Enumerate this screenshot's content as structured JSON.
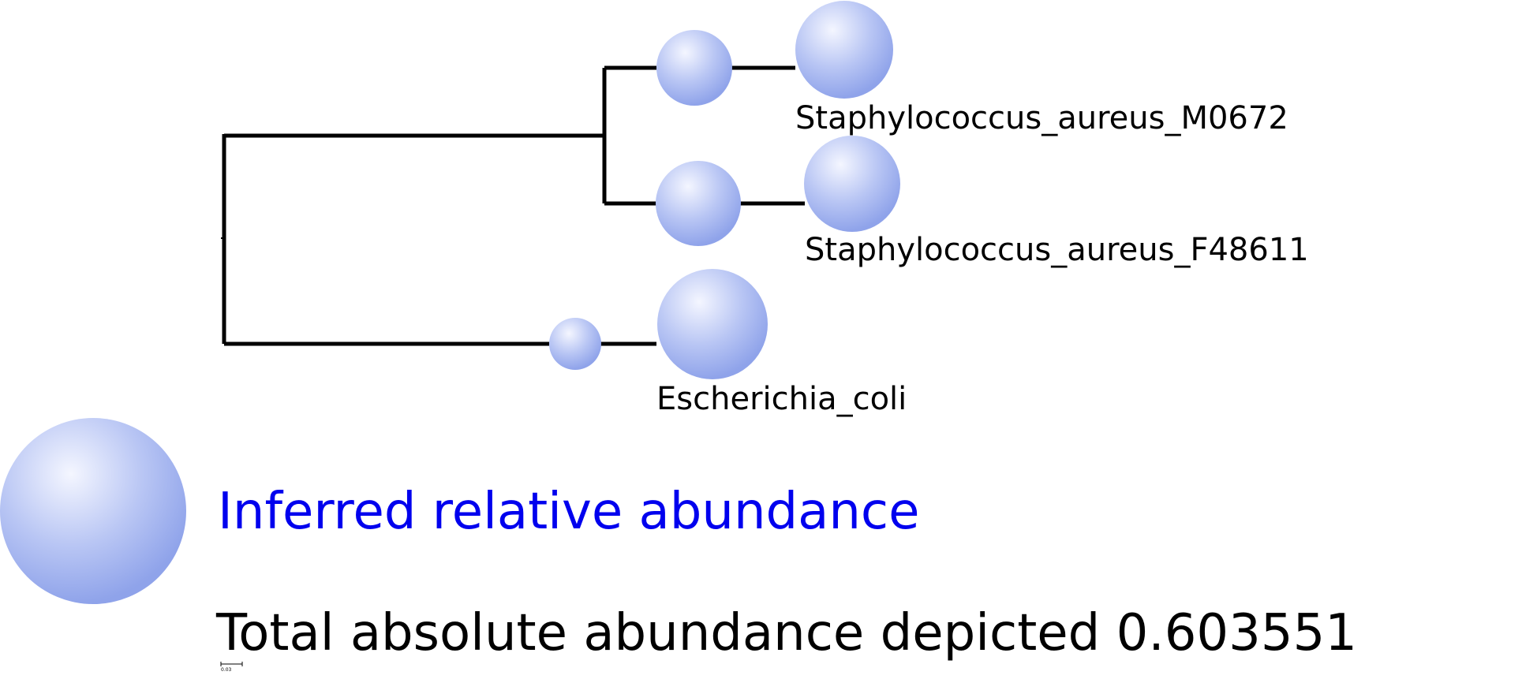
{
  "tree": {
    "leaves": [
      {
        "label": "Staphylococcus_aureus_M0672"
      },
      {
        "label": "Staphylococcus_aureus_F48611"
      },
      {
        "label": "Escherichia_coli"
      }
    ]
  },
  "legend": {
    "label": "Inferred relative abundance",
    "label_color": "#0000ee"
  },
  "total": {
    "text": "Total absolute abundance depicted 0.603551"
  },
  "scale_bar": {
    "label": "0.03"
  },
  "colors": {
    "bubble_light": "#f4f6ff",
    "bubble_mid": "#b9c6f4",
    "bubble_dark": "#8fa3ea",
    "branch": "#000000"
  }
}
